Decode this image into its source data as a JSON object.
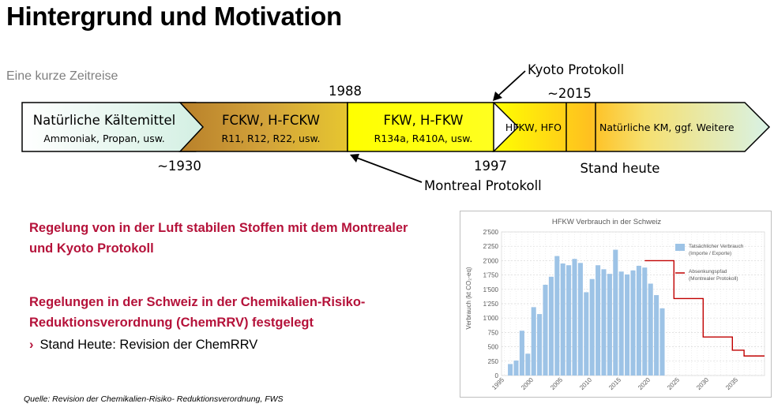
{
  "title": "Hintergrund und Motivation",
  "subtitle": "Eine kurze Zeitreise",
  "timeline": {
    "segments": [
      {
        "title": "Natürliche Kältemittel",
        "examples": "Ammoniak, Propan, usw.",
        "color": "#e3f2ea"
      },
      {
        "title": "FCKW, H-FCKW",
        "examples": "R11, R12, R22, usw.",
        "color": "#c8922e"
      },
      {
        "title": "FKW, H-FKW",
        "examples": "R134a, R410A, usw.",
        "color": "#ffff00"
      },
      {
        "title": "HFKW, HFO",
        "examples": "",
        "color": "#ffff00"
      },
      {
        "title": "Natürliche KM, ggf. Weitere",
        "examples": "",
        "color": "#ffb020"
      }
    ],
    "labels": {
      "y1930": "~1930",
      "y1988": "1988",
      "y1997": "1997",
      "y2015": "~2015",
      "kyoto": "Kyoto Protokoll",
      "montreal": "Montreal Protokoll",
      "stand_heute": "Stand heute"
    }
  },
  "regulation1": "Regelung von in der Luft stabilen Stoffen mit dem Montrealer und Kyoto Protokoll",
  "regulation2": "Regelungen in der Schweiz in der Chemikalien-Risiko-Reduktionsverordnung (ChemRRV) festgelegt",
  "bullet": {
    "symbol": "›",
    "text": "Stand Heute: Revision der ChemRRV"
  },
  "source": "Quelle: Revision der Chemikalien-Risiko- Reduktionsverordnung, FWS",
  "chart_data": {
    "type": "bar",
    "title": "HFKW Verbrauch in der Schweiz",
    "ylabel": "Verbrauch (kt CO₂-eq)",
    "xlabel": "",
    "ylim": [
      0,
      2500
    ],
    "xlim": [
      1994.5,
      2039.5
    ],
    "yticks": [
      "0",
      "250",
      "500",
      "750",
      "1'000",
      "1'250",
      "1'500",
      "1'750",
      "2'000",
      "2'250",
      "2'500"
    ],
    "ytick_values": [
      0,
      250,
      500,
      750,
      1000,
      1250,
      1500,
      1750,
      2000,
      2250,
      2500
    ],
    "xticks": [
      "1995",
      "2000",
      "2005",
      "2010",
      "2015",
      "2020",
      "2025",
      "2030",
      "2035"
    ],
    "xtick_values": [
      1995,
      2000,
      2005,
      2010,
      2015,
      2020,
      2025,
      2030,
      2035
    ],
    "grid": true,
    "series": [
      {
        "name": "Tatsächlicher Verbrauch",
        "name_line2": "(Importe / Exporte)",
        "type": "bar",
        "color": "#9dc3e6",
        "x": [
          1996,
          1997,
          1998,
          1999,
          2000,
          2001,
          2002,
          2003,
          2004,
          2005,
          2006,
          2007,
          2008,
          2009,
          2010,
          2011,
          2012,
          2013,
          2014,
          2015,
          2016,
          2017,
          2018,
          2019,
          2020,
          2021,
          2022
        ],
        "values": [
          200,
          260,
          780,
          380,
          1190,
          1070,
          1580,
          1720,
          2080,
          1950,
          1920,
          2030,
          1960,
          1450,
          1680,
          1920,
          1850,
          1770,
          2190,
          1810,
          1760,
          1830,
          1910,
          1880,
          1600,
          1400,
          1170
        ]
      },
      {
        "name": "Absenkungspfad",
        "name_line2": "(Montrealer Protokoll)",
        "type": "step",
        "color": "#c00000",
        "x": [
          2019,
          2024,
          2029,
          2034,
          2036,
          2040
        ],
        "values": [
          2000,
          1340,
          670,
          440,
          340,
          340
        ]
      }
    ]
  }
}
